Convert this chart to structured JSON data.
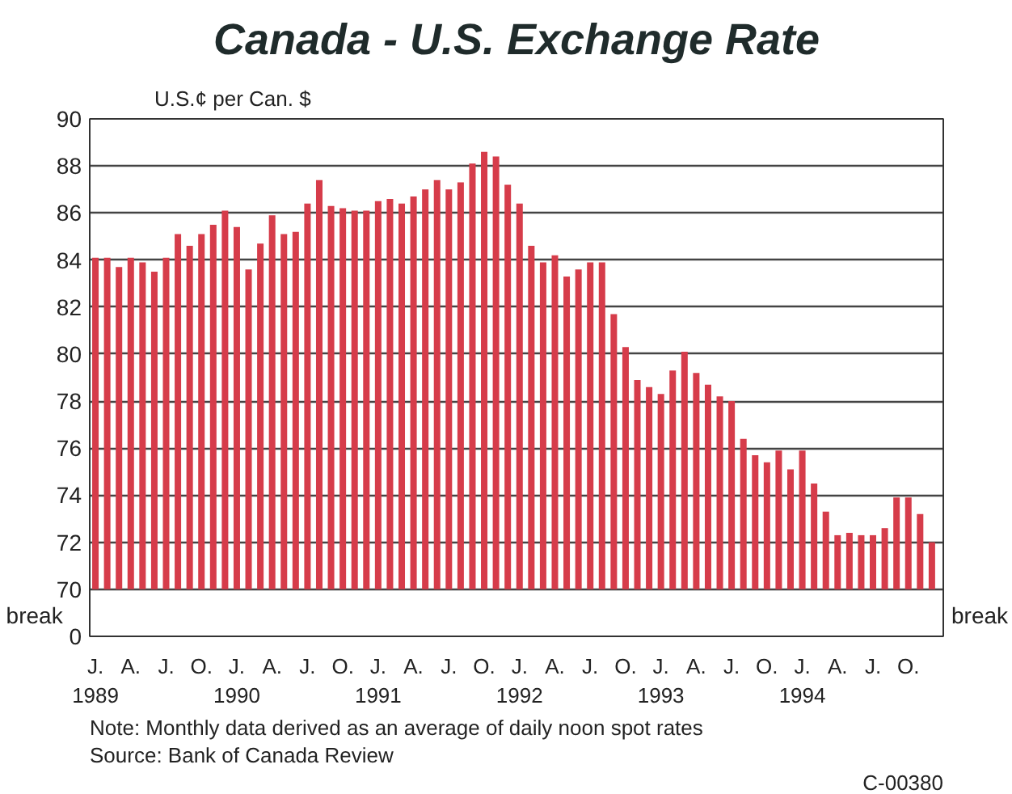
{
  "chart_data": {
    "type": "bar",
    "title": "Canada - U.S. Exchange Rate",
    "ylabel": "U.S.¢ per Can. $",
    "x": [
      "1989-01",
      "1989-02",
      "1989-03",
      "1989-04",
      "1989-05",
      "1989-06",
      "1989-07",
      "1989-08",
      "1989-09",
      "1989-10",
      "1989-11",
      "1989-12",
      "1990-01",
      "1990-02",
      "1990-03",
      "1990-04",
      "1990-05",
      "1990-06",
      "1990-07",
      "1990-08",
      "1990-09",
      "1990-10",
      "1990-11",
      "1990-12",
      "1991-01",
      "1991-02",
      "1991-03",
      "1991-04",
      "1991-05",
      "1991-06",
      "1991-07",
      "1991-08",
      "1991-09",
      "1991-10",
      "1991-11",
      "1991-12",
      "1992-01",
      "1992-02",
      "1992-03",
      "1992-04",
      "1992-05",
      "1992-06",
      "1992-07",
      "1992-08",
      "1992-09",
      "1992-10",
      "1992-11",
      "1992-12",
      "1993-01",
      "1993-02",
      "1993-03",
      "1993-04",
      "1993-05",
      "1993-06",
      "1993-07",
      "1993-08",
      "1993-09",
      "1993-10",
      "1993-11",
      "1993-12",
      "1994-01",
      "1994-02",
      "1994-03",
      "1994-04",
      "1994-05",
      "1994-06",
      "1994-07",
      "1994-08",
      "1994-09",
      "1994-10",
      "1994-11",
      "1994-12"
    ],
    "values": [
      84.1,
      84.1,
      83.7,
      84.1,
      83.9,
      83.5,
      84.1,
      85.1,
      84.6,
      85.1,
      85.5,
      86.1,
      85.4,
      83.6,
      84.7,
      85.9,
      85.1,
      85.2,
      86.4,
      87.4,
      86.3,
      86.2,
      86.1,
      86.1,
      86.5,
      86.6,
      86.4,
      86.7,
      87.0,
      87.4,
      87.0,
      87.3,
      88.1,
      88.6,
      88.4,
      87.2,
      86.4,
      84.6,
      83.9,
      84.2,
      83.3,
      83.6,
      83.9,
      83.9,
      81.7,
      80.3,
      78.9,
      78.6,
      78.3,
      79.3,
      80.1,
      79.2,
      78.7,
      78.2,
      78.0,
      76.4,
      75.7,
      75.4,
      75.9,
      75.1,
      75.9,
      74.5,
      73.3,
      72.3,
      72.4,
      72.3,
      72.3,
      72.6,
      73.9,
      73.9,
      73.2,
      72.0
    ],
    "color": "#d63c4a",
    "xlim": [
      "1988-12-17",
      "1994-12-31"
    ],
    "xticks": [
      {
        "value": "1989-01",
        "label": "J.\n1989"
      },
      {
        "value": "1989-04",
        "label": "A."
      },
      {
        "value": "1989-07",
        "label": "J."
      },
      {
        "value": "1989-10",
        "label": "O."
      },
      {
        "value": "1990-01",
        "label": "J.\n1990"
      },
      {
        "value": "1990-04",
        "label": "A."
      },
      {
        "value": "1990-07",
        "label": "J."
      },
      {
        "value": "1990-10",
        "label": "O."
      },
      {
        "value": "1991-01",
        "label": "J.\n1991"
      },
      {
        "value": "1991-04",
        "label": "A."
      },
      {
        "value": "1991-07",
        "label": "J."
      },
      {
        "value": "1991-10",
        "label": "O."
      },
      {
        "value": "1992-01",
        "label": "J.\n1992"
      },
      {
        "value": "1992-04",
        "label": "A."
      },
      {
        "value": "1992-07",
        "label": "J."
      },
      {
        "value": "1992-10",
        "label": "O."
      },
      {
        "value": "1993-01",
        "label": "J.\n1993"
      },
      {
        "value": "1993-04",
        "label": "A."
      },
      {
        "value": "1993-07",
        "label": "J."
      },
      {
        "value": "1993-10",
        "label": "O."
      },
      {
        "value": "1994-01",
        "label": "J.\n1994"
      },
      {
        "value": "1994-04",
        "label": "A."
      },
      {
        "value": "1994-07",
        "label": "J."
      },
      {
        "value": "1994-10",
        "label": "O."
      }
    ],
    "ylim": [
      70,
      90
    ],
    "yticks": [
      70,
      72,
      74,
      76,
      78,
      80,
      82,
      84,
      86,
      88,
      90
    ],
    "grid": "y",
    "annotations": [
      "break",
      "break",
      "0",
      "Note: Monthly data derived as an average of daily noon spot rates",
      "Source: Bank of Canada Review",
      "C-00380"
    ]
  }
}
